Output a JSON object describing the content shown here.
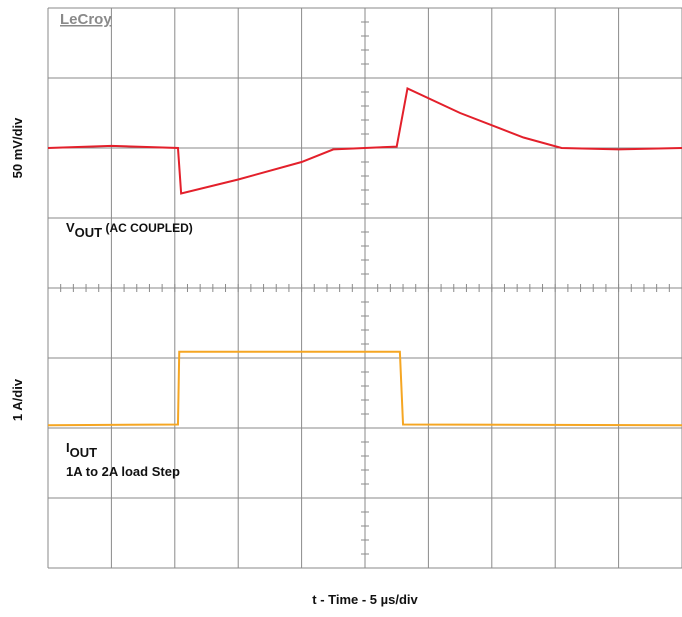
{
  "chart_data": {
    "type": "line",
    "brand": "LeCroy",
    "x_label": "t - Time - 5 µs/div",
    "y_labels": [
      "50 mV/div",
      "1 A/div"
    ],
    "annotations": [
      {
        "main": "V",
        "sub": "OUT",
        "rest": " (AC COUPLED)"
      },
      {
        "main": "I",
        "sub": "OUT",
        "rest": "1A to 2A load Step"
      }
    ],
    "xlim": [
      0,
      10
    ],
    "ylim": [
      0,
      8
    ],
    "xticks": [
      0,
      1,
      2,
      3,
      4,
      5,
      6,
      7,
      8,
      9,
      10
    ],
    "yticks": [
      0,
      1,
      2,
      3,
      4,
      5,
      6,
      7,
      8
    ],
    "grid": true,
    "series": [
      {
        "color": "#e3202b",
        "x": [
          0,
          1,
          2.05,
          2.1,
          3,
          4,
          4.5,
          5.5,
          5.67,
          6.5,
          7.5,
          8.1,
          9,
          10
        ],
        "values": [
          6.0,
          6.03,
          6.0,
          5.35,
          5.55,
          5.8,
          5.98,
          6.02,
          6.85,
          6.5,
          6.15,
          6.0,
          5.98,
          6.0
        ]
      },
      {
        "color": "#f5a623",
        "x": [
          0,
          2.05,
          2.07,
          5.55,
          5.6,
          10
        ],
        "values": [
          2.04,
          2.05,
          3.09,
          3.09,
          2.05,
          2.04
        ]
      }
    ]
  }
}
